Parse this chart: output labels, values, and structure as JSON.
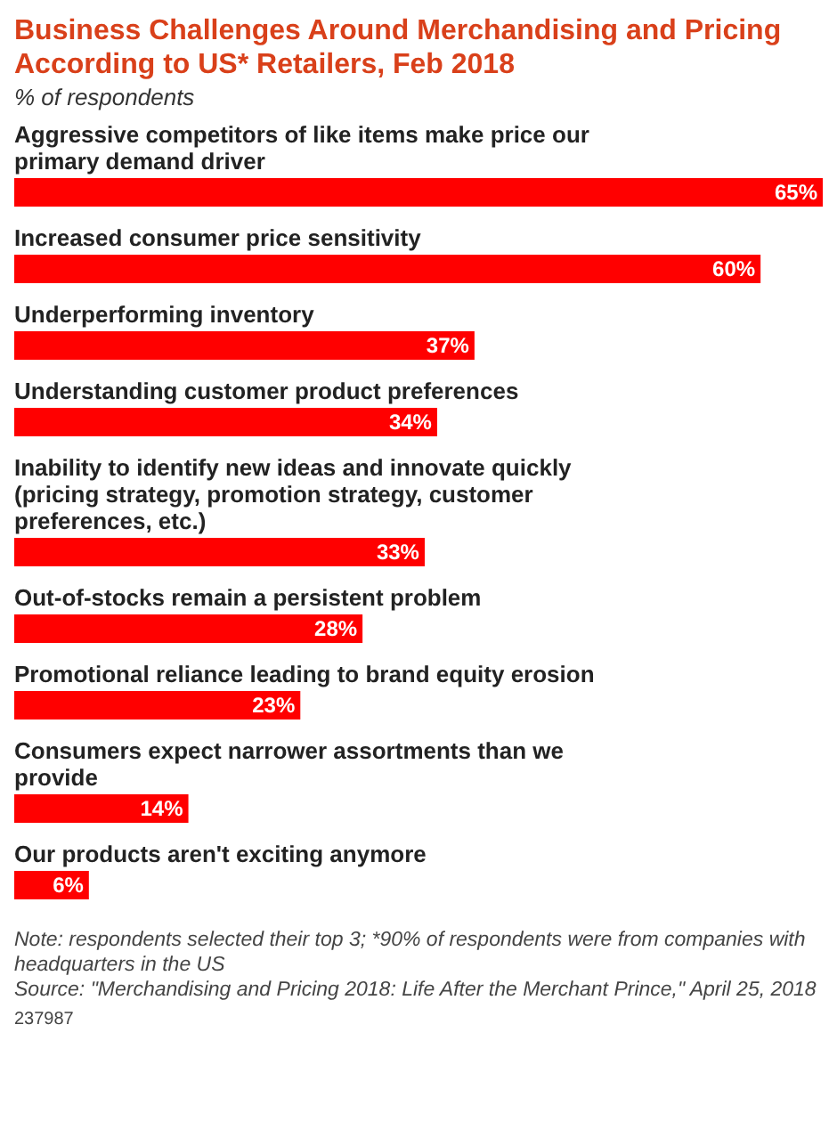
{
  "chart_data": {
    "type": "bar",
    "orientation": "horizontal",
    "title": "Business Challenges Around Merchandising and Pricing According to US* Retailers, Feb 2018",
    "subtitle": "% of respondents",
    "categories": [
      "Aggressive competitors of like items make price our primary demand driver",
      "Increased consumer price sensitivity",
      "Underperforming inventory",
      "Understanding customer product preferences",
      "Inability to identify new ideas and innovate quickly (pricing strategy, promotion strategy, customer preferences, etc.)",
      "Out-of-stocks remain a persistent problem",
      "Promotional reliance leading to brand equity erosion",
      "Consumers expect narrower assortments than we provide",
      "Our products aren't exciting anymore"
    ],
    "values": [
      65,
      60,
      37,
      34,
      33,
      28,
      23,
      14,
      6
    ],
    "value_labels": [
      "65%",
      "60%",
      "37%",
      "34%",
      "33%",
      "28%",
      "23%",
      "14%",
      "6%"
    ],
    "color": "#ff0000",
    "annotations": [
      "Note: respondents selected their top 3; *90% of respondents were from companies with headquarters in the US",
      "Source: \"Merchandising and Pricing 2018: Life After the Merchant Prince,\" April 25, 2018",
      "237987"
    ]
  }
}
